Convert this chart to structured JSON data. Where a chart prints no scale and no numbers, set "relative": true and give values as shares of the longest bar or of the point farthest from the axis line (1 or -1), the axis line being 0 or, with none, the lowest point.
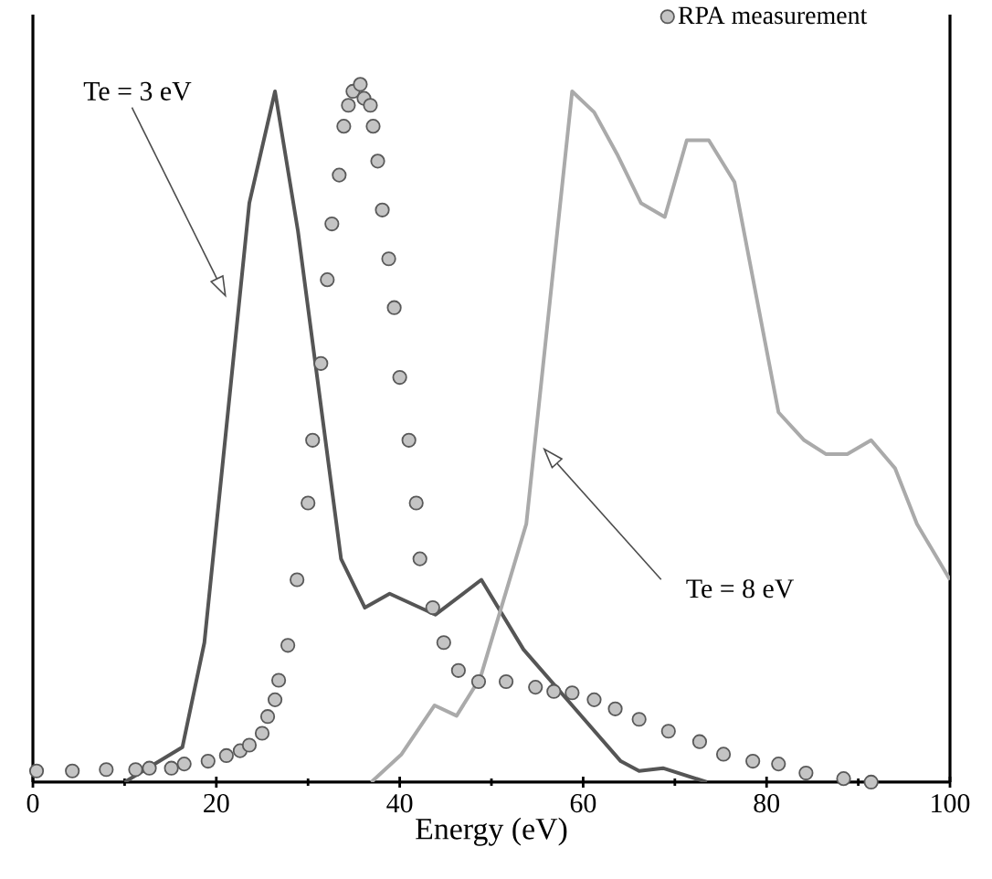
{
  "chart_data": {
    "type": "line",
    "xlabel": "Energy (eV)",
    "relative": true,
    "xlim": [
      0,
      100
    ],
    "xticks": [
      0,
      20,
      40,
      60,
      80,
      100
    ],
    "legend": "top right",
    "annotations": [
      "Te = 3 eV",
      "Te = 8 eV"
    ],
    "series": [
      {
        "color": "#555555",
        "marker": "none",
        "x": [
          10,
          16.3,
          18.7,
          23.6,
          26.4,
          28.9,
          33.6,
          36.2,
          38.9,
          43.9,
          48.9,
          53.5,
          58.8,
          64.1,
          66.1,
          68.7,
          73.5
        ],
        "values": [
          0,
          0.05,
          0.2,
          0.83,
          0.99,
          0.79,
          0.32,
          0.25,
          0.27,
          0.24,
          0.29,
          0.19,
          0.11,
          0.03,
          0.016,
          0.02,
          0
        ]
      },
      {
        "color": "#aaaaaa",
        "marker": "none",
        "x": [
          36.9,
          40.2,
          43.8,
          46.2,
          48.8,
          53.8,
          58.8,
          61.2,
          63.7,
          66.3,
          68.9,
          71.3,
          73.7,
          76.5,
          81.3,
          84.1,
          86.5,
          88.8,
          91.4,
          94,
          96.4,
          100
        ],
        "values": [
          0,
          0.04,
          0.11,
          0.095,
          0.15,
          0.37,
          0.99,
          0.96,
          0.9,
          0.83,
          0.81,
          0.92,
          0.92,
          0.86,
          0.53,
          0.49,
          0.47,
          0.47,
          0.49,
          0.45,
          0.37,
          0.29
        ]
      },
      {
        "type": "scatter",
        "name": "RPA measurement",
        "color": "#c4c4c4",
        "marker": "circle",
        "x": [
          0.4,
          4.3,
          8.0,
          11.2,
          12.7,
          15.1,
          16.5,
          19.1,
          21.1,
          22.6,
          23.6,
          25.0,
          25.6,
          26.4,
          26.8,
          27.8,
          28.8,
          30.0,
          30.5,
          31.4,
          32.1,
          32.6,
          33.4,
          33.9,
          34.4,
          34.9,
          35.7,
          36.1,
          36.8,
          37.1,
          37.6,
          38.1,
          38.8,
          39.4,
          40.0,
          41.0,
          41.8,
          42.2,
          43.6,
          44.8,
          46.4,
          48.6,
          51.6,
          54.8,
          56.8,
          58.8,
          61.2,
          63.5,
          66.1,
          69.3,
          72.7,
          75.3,
          78.5,
          81.3,
          84.3,
          88.4,
          91.4
        ],
        "values": [
          0.016,
          0.016,
          0.018,
          0.018,
          0.02,
          0.02,
          0.026,
          0.03,
          0.038,
          0.045,
          0.053,
          0.07,
          0.094,
          0.118,
          0.146,
          0.196,
          0.29,
          0.4,
          0.49,
          0.6,
          0.72,
          0.8,
          0.87,
          0.94,
          0.97,
          0.99,
          1.0,
          0.98,
          0.97,
          0.94,
          0.89,
          0.82,
          0.75,
          0.68,
          0.58,
          0.49,
          0.4,
          0.32,
          0.25,
          0.2,
          0.16,
          0.144,
          0.144,
          0.136,
          0.13,
          0.128,
          0.118,
          0.105,
          0.09,
          0.073,
          0.058,
          0.04,
          0.03,
          0.026,
          0.013,
          0.005,
          0
        ]
      }
    ]
  }
}
